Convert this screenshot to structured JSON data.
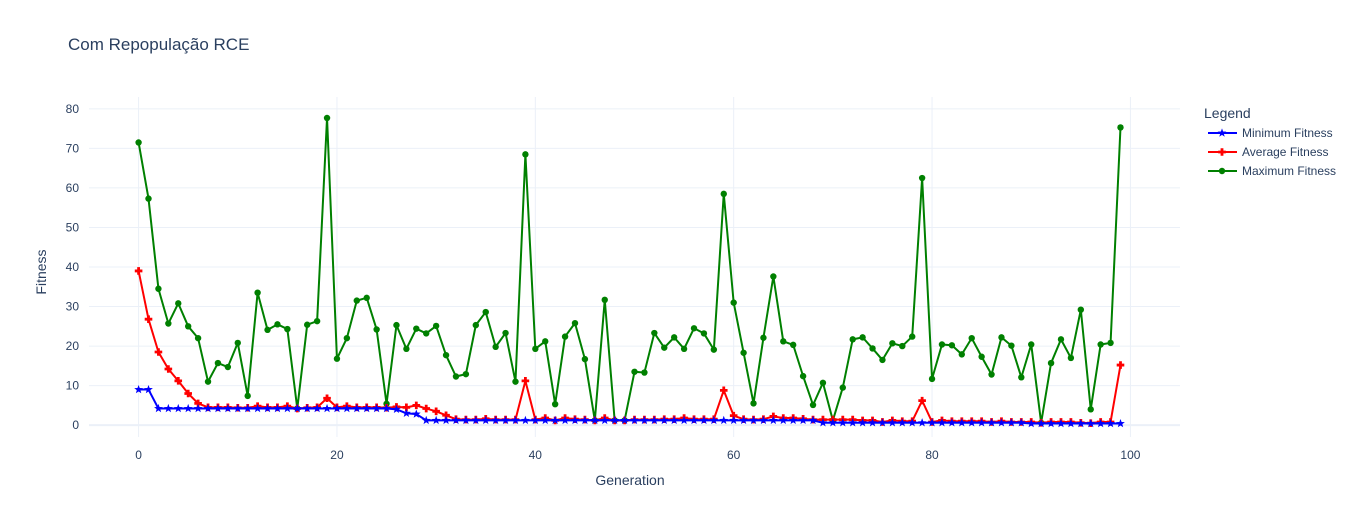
{
  "chart_data": {
    "type": "line",
    "title": "Com Repopulação RCE",
    "xlabel": "Generation",
    "ylabel": "Fitness",
    "xlim": [
      -5,
      105
    ],
    "ylim": [
      -3,
      83
    ],
    "x_ticks": [
      0,
      20,
      40,
      60,
      80,
      100
    ],
    "y_ticks": [
      0,
      10,
      20,
      30,
      40,
      50,
      60,
      70,
      80
    ],
    "grid": true,
    "legend": {
      "title": "Legend",
      "placement": "right-top"
    },
    "x": [
      0,
      1,
      2,
      3,
      4,
      5,
      6,
      7,
      8,
      9,
      10,
      11,
      12,
      13,
      14,
      15,
      16,
      17,
      18,
      19,
      20,
      21,
      22,
      23,
      24,
      25,
      26,
      27,
      28,
      29,
      30,
      31,
      32,
      33,
      34,
      35,
      36,
      37,
      38,
      39,
      40,
      41,
      42,
      43,
      44,
      45,
      46,
      47,
      48,
      49,
      50,
      51,
      52,
      53,
      54,
      55,
      56,
      57,
      58,
      59,
      60,
      61,
      62,
      63,
      64,
      65,
      66,
      67,
      68,
      69,
      70,
      71,
      72,
      73,
      74,
      75,
      76,
      77,
      78,
      79,
      80,
      81,
      82,
      83,
      84,
      85,
      86,
      87,
      88,
      89,
      90,
      91,
      92,
      93,
      94,
      95,
      96,
      97,
      98,
      99
    ],
    "series": [
      {
        "name": "Minimum Fitness",
        "color": "#0000ff",
        "marker": "star",
        "values": [
          9,
          9,
          4.2,
          4.2,
          4.2,
          4.2,
          4.2,
          4.2,
          4.2,
          4.2,
          4.2,
          4.2,
          4.2,
          4.2,
          4.2,
          4.2,
          4.2,
          4.2,
          4.2,
          4.2,
          4.2,
          4.2,
          4.2,
          4.2,
          4.2,
          4.2,
          4,
          3,
          2.8,
          1.2,
          1.2,
          1.2,
          1.2,
          1.2,
          1.2,
          1.2,
          1.2,
          1.2,
          1.2,
          1.2,
          1.2,
          1.2,
          1.2,
          1.2,
          1.2,
          1.2,
          1.2,
          1.2,
          1.2,
          1.2,
          1.2,
          1.2,
          1.2,
          1.2,
          1.2,
          1.2,
          1.2,
          1.2,
          1.2,
          1.2,
          1.2,
          1.2,
          1.2,
          1.2,
          1.2,
          1.2,
          1.2,
          1.2,
          1.2,
          0.6,
          0.6,
          0.6,
          0.6,
          0.6,
          0.6,
          0.6,
          0.6,
          0.6,
          0.6,
          0.6,
          0.6,
          0.6,
          0.6,
          0.6,
          0.6,
          0.6,
          0.6,
          0.6,
          0.6,
          0.6,
          0.4,
          0.4,
          0.4,
          0.4,
          0.4,
          0.4,
          0.4,
          0.4,
          0.4,
          0.4
        ]
      },
      {
        "name": "Average Fitness",
        "color": "#ff0000",
        "marker": "cross",
        "values": [
          39,
          26.8,
          18.5,
          14.2,
          11.2,
          8,
          5.5,
          4.5,
          4.5,
          4.5,
          4.4,
          4.4,
          4.8,
          4.5,
          4.5,
          4.8,
          4.2,
          4.4,
          4.5,
          6.8,
          4.5,
          4.8,
          4.5,
          4.5,
          4.5,
          4.4,
          4.6,
          4.5,
          5,
          4.2,
          3.5,
          2.5,
          1.5,
          1.4,
          1.4,
          1.6,
          1.4,
          1.4,
          1.4,
          11.2,
          1.4,
          1.8,
          1.2,
          1.8,
          1.5,
          1.4,
          1.2,
          1.8,
          1.2,
          1.2,
          1.4,
          1.4,
          1.4,
          1.5,
          1.5,
          1.8,
          1.5,
          1.5,
          1.5,
          8.8,
          2.4,
          1.5,
          1.4,
          1.5,
          2.2,
          1.8,
          1.8,
          1.6,
          1.4,
          1.4,
          1.4,
          1.4,
          1.4,
          1.2,
          1.2,
          0.8,
          1.2,
          1,
          1,
          6.2,
          0.8,
          1.2,
          1,
          1,
          1,
          1,
          0.8,
          1,
          0.8,
          0.8,
          0.8,
          0.6,
          0.8,
          0.8,
          0.8,
          0.6,
          0.5,
          0.8,
          0.8,
          15.2
        ]
      },
      {
        "name": "Maximum Fitness",
        "color": "#008000",
        "marker": "circle",
        "values": [
          71.5,
          57.3,
          34.5,
          25.7,
          30.8,
          25,
          22,
          11,
          15.7,
          14.7,
          20.8,
          7.4,
          33.5,
          24.1,
          25.5,
          24.3,
          4.2,
          25.4,
          26.3,
          77.7,
          16.8,
          22,
          31.5,
          32.2,
          24.2,
          5.4,
          25.3,
          19.3,
          24.4,
          23.2,
          25.1,
          17.7,
          12.3,
          12.9,
          25.3,
          28.6,
          19.8,
          23.3,
          11,
          68.5,
          19.3,
          21.2,
          5.3,
          22.4,
          25.8,
          16.7,
          1.2,
          31.7,
          1.2,
          1.2,
          13.5,
          13.3,
          23.3,
          19.6,
          22.2,
          19.3,
          24.5,
          23.2,
          19.1,
          58.5,
          31,
          18.3,
          5.5,
          22.1,
          37.6,
          21.2,
          20.3,
          12.4,
          5.1,
          10.7,
          1.2,
          9.5,
          21.7,
          22.2,
          19.4,
          16.5,
          20.7,
          20,
          22.4,
          62.5,
          11.7,
          20.4,
          20.2,
          17.9,
          22,
          17.3,
          12.8,
          22.2,
          20.1,
          12.1,
          20.4,
          0.6,
          15.7,
          21.7,
          17,
          29.2,
          4,
          20.4,
          20.8,
          75.3
        ]
      }
    ]
  }
}
